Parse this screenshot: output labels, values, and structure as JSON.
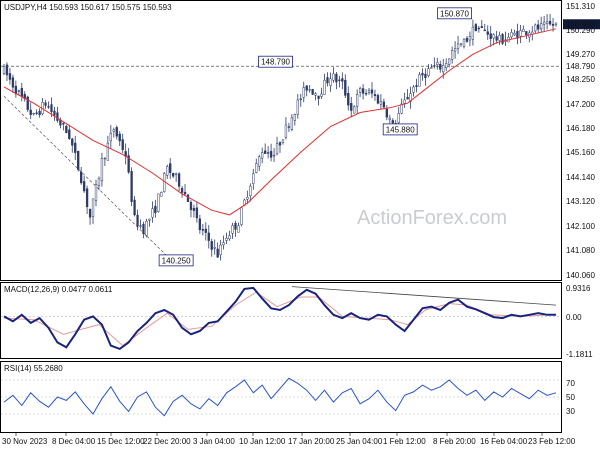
{
  "colors": {
    "candle": "#2c3a66",
    "ma": "#e03030",
    "macd": "#1a237e",
    "signal": "#e59a9a",
    "rsi": "#2b55c8",
    "annot_border": "#1a237e",
    "badge_dark": "#0f1a36",
    "trend_line": "#444444"
  },
  "watermark": "ActionForex.com",
  "chart_data": [
    {
      "type": "candlestick",
      "title": "USDJPY,H4  150.593 150.617 150.575 150.593",
      "ylim": [
        139.6,
        151.55
      ],
      "yticks": [
        "151.310",
        "150.290",
        "149.270",
        "148.250",
        "147.200",
        "146.180",
        "145.160",
        "144.140",
        "143.120",
        "142.100",
        "141.080",
        "140.060"
      ],
      "last_price": "150.593",
      "hline": {
        "value": 148.79,
        "label": "148.790"
      },
      "annotations": [
        {
          "text": "150.870",
          "at_x": "8 Feb 20:00",
          "value": 150.87
        },
        {
          "text": "148.790",
          "at_x": "12 Jan 20:00",
          "value": 148.79
        },
        {
          "text": "145.880",
          "at_x": "1 Feb 08:00",
          "value": 145.88
        },
        {
          "text": "140.250",
          "at_x": "28 Dec 04:00",
          "value": 140.25
        }
      ],
      "price_path": [
        [
          0,
          148.6
        ],
        [
          4,
          147.8
        ],
        [
          10,
          146.6
        ],
        [
          14,
          147.2
        ],
        [
          18,
          146.5
        ],
        [
          22,
          145.8
        ],
        [
          26,
          144.0
        ],
        [
          29,
          142.3
        ],
        [
          33,
          144.7
        ],
        [
          37,
          146.1
        ],
        [
          41,
          145.0
        ],
        [
          44,
          142.2
        ],
        [
          47,
          141.8
        ],
        [
          51,
          142.7
        ],
        [
          55,
          144.4
        ],
        [
          59,
          143.8
        ],
        [
          63,
          142.8
        ],
        [
          66,
          141.8
        ],
        [
          69,
          141.3
        ],
        [
          72,
          140.7
        ],
        [
          75,
          141.5
        ],
        [
          79,
          142.1
        ],
        [
          83,
          143.8
        ],
        [
          87,
          145.2
        ],
        [
          91,
          145.0
        ],
        [
          95,
          146.1
        ],
        [
          99,
          147.2
        ],
        [
          102,
          147.9
        ],
        [
          106,
          147.6
        ],
        [
          110,
          148.4
        ],
        [
          114,
          148.0
        ],
        [
          117,
          146.9
        ],
        [
          120,
          147.7
        ],
        [
          124,
          147.6
        ],
        [
          128,
          147.1
        ],
        [
          131,
          146.2
        ],
        [
          134,
          147.0
        ],
        [
          137,
          147.7
        ],
        [
          141,
          148.4
        ],
        [
          144,
          148.7
        ],
        [
          148,
          148.8
        ],
        [
          151,
          149.4
        ],
        [
          155,
          149.8
        ],
        [
          159,
          150.5
        ],
        [
          163,
          150.2
        ],
        [
          167,
          149.9
        ],
        [
          171,
          150.1
        ],
        [
          175,
          150.3
        ],
        [
          179,
          150.4
        ],
        [
          183,
          150.5
        ],
        [
          186,
          150.6
        ]
      ],
      "ma_path": [
        [
          0,
          147.9
        ],
        [
          10,
          147.2
        ],
        [
          20,
          146.4
        ],
        [
          30,
          145.6
        ],
        [
          40,
          145.0
        ],
        [
          50,
          144.2
        ],
        [
          60,
          143.3
        ],
        [
          70,
          142.6
        ],
        [
          76,
          142.4
        ],
        [
          82,
          142.9
        ],
        [
          90,
          143.9
        ],
        [
          100,
          145.1
        ],
        [
          110,
          146.2
        ],
        [
          120,
          146.8
        ],
        [
          130,
          147.0
        ],
        [
          136,
          147.2
        ],
        [
          142,
          147.8
        ],
        [
          150,
          148.6
        ],
        [
          158,
          149.3
        ],
        [
          166,
          149.8
        ],
        [
          176,
          150.1
        ],
        [
          186,
          150.4
        ]
      ],
      "trend_line": [
        [
          0,
          147.5
        ],
        [
          58,
          140.25
        ]
      ]
    },
    {
      "type": "line",
      "title": "MACD(12,26,9) 0.0477 0.0611",
      "ylim": [
        -1.25,
        1.0
      ],
      "yticks": [
        "0.9316",
        "0.00",
        "-1.1811"
      ],
      "macd_path": [
        [
          0,
          0.0
        ],
        [
          3,
          -0.15
        ],
        [
          6,
          0.05
        ],
        [
          9,
          -0.2
        ],
        [
          12,
          -0.05
        ],
        [
          15,
          -0.35
        ],
        [
          18,
          -0.8
        ],
        [
          21,
          -0.95
        ],
        [
          24,
          -0.55
        ],
        [
          27,
          -0.1
        ],
        [
          30,
          0.0
        ],
        [
          33,
          -0.25
        ],
        [
          36,
          -0.9
        ],
        [
          39,
          -1.0
        ],
        [
          42,
          -0.8
        ],
        [
          45,
          -0.45
        ],
        [
          48,
          -0.2
        ],
        [
          51,
          0.1
        ],
        [
          54,
          0.2
        ],
        [
          57,
          0.05
        ],
        [
          60,
          -0.35
        ],
        [
          63,
          -0.55
        ],
        [
          66,
          -0.45
        ],
        [
          69,
          -0.2
        ],
        [
          72,
          -0.15
        ],
        [
          75,
          0.15
        ],
        [
          78,
          0.45
        ],
        [
          81,
          0.85
        ],
        [
          84,
          0.88
        ],
        [
          87,
          0.55
        ],
        [
          90,
          0.25
        ],
        [
          93,
          0.2
        ],
        [
          96,
          0.35
        ],
        [
          99,
          0.62
        ],
        [
          102,
          0.82
        ],
        [
          105,
          0.7
        ],
        [
          108,
          0.35
        ],
        [
          111,
          0.05
        ],
        [
          114,
          -0.05
        ],
        [
          117,
          0.1
        ],
        [
          120,
          -0.05
        ],
        [
          123,
          -0.1
        ],
        [
          126,
          0.05
        ],
        [
          129,
          0.0
        ],
        [
          132,
          -0.25
        ],
        [
          135,
          -0.45
        ],
        [
          138,
          -0.1
        ],
        [
          141,
          0.25
        ],
        [
          144,
          0.3
        ],
        [
          147,
          0.2
        ],
        [
          150,
          0.42
        ],
        [
          153,
          0.52
        ],
        [
          156,
          0.3
        ],
        [
          159,
          0.22
        ],
        [
          162,
          0.1
        ],
        [
          165,
          -0.02
        ],
        [
          168,
          -0.05
        ],
        [
          171,
          0.05
        ],
        [
          174,
          0.0
        ],
        [
          177,
          0.05
        ],
        [
          180,
          0.1
        ],
        [
          183,
          0.05
        ],
        [
          186,
          0.05
        ]
      ],
      "signal_path": [
        [
          0,
          -0.05
        ],
        [
          10,
          -0.1
        ],
        [
          20,
          -0.55
        ],
        [
          26,
          -0.4
        ],
        [
          32,
          -0.25
        ],
        [
          40,
          -0.9
        ],
        [
          48,
          -0.35
        ],
        [
          55,
          0.1
        ],
        [
          62,
          -0.4
        ],
        [
          70,
          -0.3
        ],
        [
          78,
          0.35
        ],
        [
          85,
          0.75
        ],
        [
          92,
          0.3
        ],
        [
          100,
          0.6
        ],
        [
          106,
          0.6
        ],
        [
          114,
          0.0
        ],
        [
          122,
          -0.05
        ],
        [
          130,
          -0.1
        ],
        [
          136,
          -0.25
        ],
        [
          142,
          0.2
        ],
        [
          150,
          0.4
        ],
        [
          156,
          0.35
        ],
        [
          164,
          0.05
        ],
        [
          174,
          0.0
        ],
        [
          186,
          0.06
        ]
      ],
      "trend_line": [
        [
          97,
          0.92
        ],
        [
          186,
          0.35
        ]
      ]
    },
    {
      "type": "line",
      "title": "RSI(14) 55.2680",
      "ylim": [
        10,
        90
      ],
      "yticks": [
        "70",
        "50",
        "30"
      ],
      "rsi_path": [
        [
          0,
          44
        ],
        [
          3,
          52
        ],
        [
          6,
          40
        ],
        [
          9,
          55
        ],
        [
          12,
          45
        ],
        [
          15,
          38
        ],
        [
          18,
          50
        ],
        [
          21,
          46
        ],
        [
          24,
          56
        ],
        [
          27,
          42
        ],
        [
          30,
          30
        ],
        [
          33,
          48
        ],
        [
          36,
          62
        ],
        [
          39,
          45
        ],
        [
          42,
          33
        ],
        [
          45,
          50
        ],
        [
          48,
          56
        ],
        [
          51,
          38
        ],
        [
          54,
          28
        ],
        [
          57,
          45
        ],
        [
          60,
          52
        ],
        [
          63,
          42
        ],
        [
          66,
          36
        ],
        [
          69,
          48
        ],
        [
          72,
          40
        ],
        [
          75,
          55
        ],
        [
          78,
          62
        ],
        [
          81,
          70
        ],
        [
          84,
          55
        ],
        [
          87,
          64
        ],
        [
          90,
          48
        ],
        [
          93,
          60
        ],
        [
          96,
          72
        ],
        [
          99,
          66
        ],
        [
          102,
          58
        ],
        [
          105,
          46
        ],
        [
          108,
          58
        ],
        [
          111,
          44
        ],
        [
          114,
          55
        ],
        [
          117,
          60
        ],
        [
          120,
          42
        ],
        [
          123,
          48
        ],
        [
          126,
          58
        ],
        [
          129,
          44
        ],
        [
          132,
          34
        ],
        [
          135,
          52
        ],
        [
          138,
          56
        ],
        [
          141,
          64
        ],
        [
          144,
          58
        ],
        [
          147,
          62
        ],
        [
          150,
          70
        ],
        [
          153,
          60
        ],
        [
          156,
          52
        ],
        [
          159,
          58
        ],
        [
          162,
          46
        ],
        [
          165,
          56
        ],
        [
          168,
          50
        ],
        [
          171,
          60
        ],
        [
          174,
          54
        ],
        [
          177,
          48
        ],
        [
          180,
          58
        ],
        [
          183,
          52
        ],
        [
          186,
          55
        ]
      ],
      "levels": [
        70,
        50,
        30
      ]
    }
  ],
  "x_axis": {
    "labels": [
      "30 Nov 2023",
      "8 Dec 04:00",
      "15 Dec 12:00",
      "22 Dec 20:00",
      "3 Jan 04:00",
      "10 Jan 12:00",
      "17 Jan 20:00",
      "25 Jan 04:00",
      "1 Feb 12:00",
      "8 Feb 20:00",
      "16 Feb 04:00",
      "23 Feb 12:00"
    ]
  }
}
